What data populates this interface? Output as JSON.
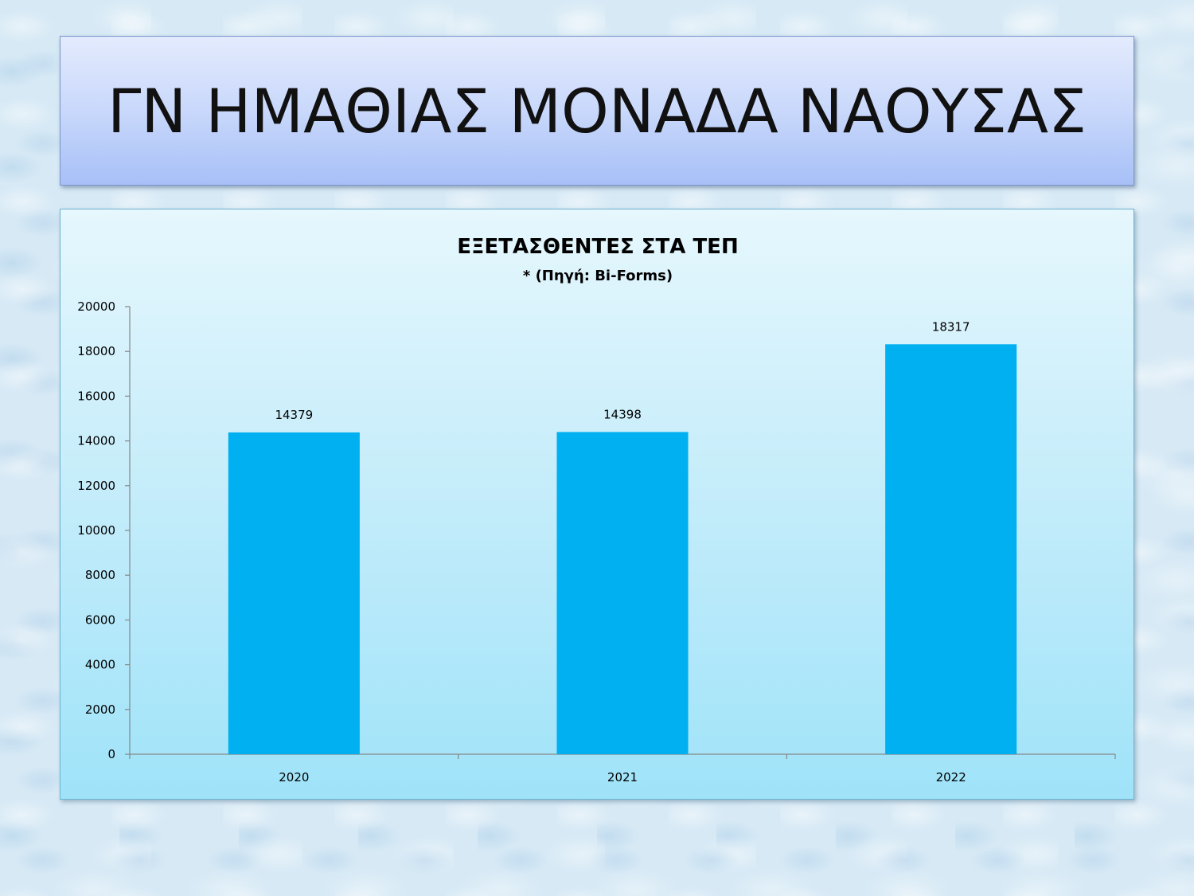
{
  "slide": {
    "title": "ΓΝ ΗΜΑΘΙΑΣ ΜΟΝΑΔΑ ΝΑΟΥΣΑΣ"
  },
  "chart_data": {
    "type": "bar",
    "title": "ΕΞΕΤΑΣΘΕΝΤΕΣ ΣΤΑ ΤΕΠ",
    "subtitle": "* (Πηγή: Bi-Forms)",
    "categories": [
      "2020",
      "2021",
      "2022"
    ],
    "values": [
      14379,
      14398,
      18317
    ],
    "xlabel": "",
    "ylabel": "",
    "ylim": [
      0,
      20000
    ],
    "yticks": [
      0,
      2000,
      4000,
      6000,
      8000,
      10000,
      12000,
      14000,
      16000,
      18000,
      20000
    ],
    "grid": false,
    "legend": "none",
    "data_labels": true,
    "bar_color": "#00b0f0",
    "axis_color": "#868686"
  }
}
